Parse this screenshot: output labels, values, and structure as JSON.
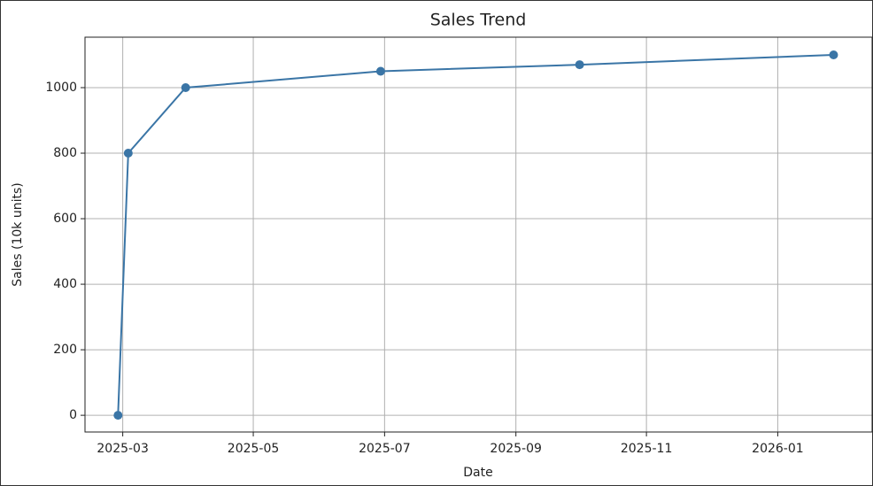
{
  "chart_data": {
    "type": "line",
    "title": "Sales Trend",
    "x_label": "Date",
    "y_label": "Sales (10k units)",
    "x": [
      2025.161,
      2025.174,
      2025.247,
      2025.495,
      2025.748,
      2026.071
    ],
    "series": [
      {
        "color": "#3a75a6",
        "values": [
          0,
          800,
          1000,
          1050,
          1070,
          1100
        ]
      }
    ],
    "xlim": [
      2025.119,
      2026.12
    ],
    "xticks": [
      {
        "value": 2025.167,
        "label": "2025-03"
      },
      {
        "value": 2025.333,
        "label": "2025-05"
      },
      {
        "value": 2025.5,
        "label": "2025-07"
      },
      {
        "value": 2025.667,
        "label": "2025-09"
      },
      {
        "value": 2025.833,
        "label": "2025-11"
      },
      {
        "value": 2026.0,
        "label": "2026-01"
      }
    ],
    "ylim": [
      -51,
      1154
    ],
    "yticks": [
      0,
      200,
      400,
      600,
      800,
      1000
    ],
    "grid": true,
    "markers": true
  }
}
